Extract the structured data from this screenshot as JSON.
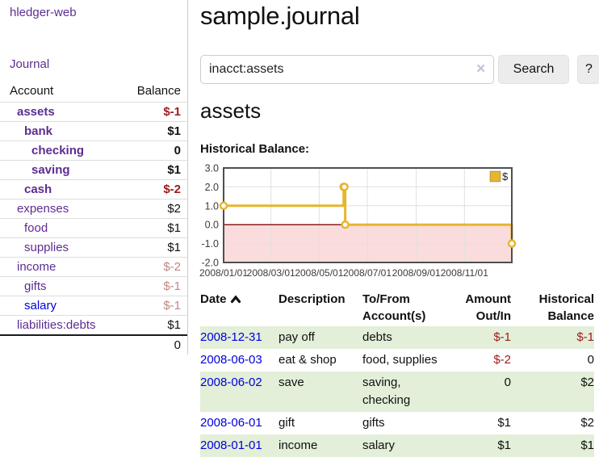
{
  "app": {
    "brand": "hledger-web",
    "nav_journal": "Journal"
  },
  "colors": {
    "accent_purple": "#5c2d91",
    "link_blue": "#0000dd",
    "negative_strong": "#9e1a1a",
    "negative_light": "#c08585",
    "row_green": "#e3efd9",
    "chart_yellow": "#e7b52e",
    "chart_negative_fill": "#fbdcdc",
    "chart_zero_line": "#8b1a1a"
  },
  "sidebar": {
    "header": {
      "account": "Account",
      "balance": "Balance"
    },
    "rows": [
      {
        "label": "assets",
        "balance": "$-1",
        "depth": 0,
        "bold": true,
        "balance_tone": "negative-strong",
        "link_tone": "purple"
      },
      {
        "label": "bank",
        "balance": "$1",
        "depth": 1,
        "bold": true,
        "balance_tone": "normal",
        "link_tone": "purple"
      },
      {
        "label": "checking",
        "balance": "0",
        "depth": 2,
        "bold": true,
        "balance_tone": "normal",
        "link_tone": "purple"
      },
      {
        "label": "saving",
        "balance": "$1",
        "depth": 2,
        "bold": true,
        "balance_tone": "normal",
        "link_tone": "purple"
      },
      {
        "label": "cash",
        "balance": "$-2",
        "depth": 1,
        "bold": true,
        "balance_tone": "negative-strong",
        "link_tone": "purple"
      },
      {
        "label": "expenses",
        "balance": "$2",
        "depth": 0,
        "bold": false,
        "balance_tone": "normal",
        "link_tone": "purple"
      },
      {
        "label": "food",
        "balance": "$1",
        "depth": 1,
        "bold": false,
        "balance_tone": "normal",
        "link_tone": "purple"
      },
      {
        "label": "supplies",
        "balance": "$1",
        "depth": 1,
        "bold": false,
        "balance_tone": "normal",
        "link_tone": "purple"
      },
      {
        "label": "income",
        "balance": "$-2",
        "depth": 0,
        "bold": false,
        "balance_tone": "negative-light",
        "link_tone": "purple"
      },
      {
        "label": "gifts",
        "balance": "$-1",
        "depth": 1,
        "bold": false,
        "balance_tone": "negative-light",
        "link_tone": "purple"
      },
      {
        "label": "salary",
        "balance": "$-1",
        "depth": 1,
        "bold": false,
        "balance_tone": "negative-light",
        "link_tone": "blue"
      },
      {
        "label": "liabilities:debts",
        "balance": "$1",
        "depth": 0,
        "bold": false,
        "balance_tone": "normal",
        "link_tone": "purple"
      }
    ],
    "total": "0"
  },
  "main": {
    "title": "sample.journal",
    "search": {
      "query": "inacct:assets",
      "clear_glyph": "✕",
      "button_label": "Search",
      "help_label": "?"
    },
    "account_heading": "assets",
    "chart_label": "Historical Balance:",
    "register": {
      "columns": [
        {
          "label": "Date",
          "align": "left",
          "sorted_asc": true
        },
        {
          "label": "Description",
          "align": "left"
        },
        {
          "label": "To/From Account(s)",
          "align": "left"
        },
        {
          "label": "Amount Out/In",
          "align": "right"
        },
        {
          "label": "Historical Balance",
          "align": "right"
        }
      ],
      "rows": [
        {
          "date": "2008-12-31",
          "description": "pay off",
          "accounts": "debts",
          "amount": "$-1",
          "amount_tone": "negative",
          "balance": "$-1",
          "balance_tone": "negative"
        },
        {
          "date": "2008-06-03",
          "description": "eat & shop",
          "accounts": "food, supplies",
          "amount": "$-2",
          "amount_tone": "negative",
          "balance": "0",
          "balance_tone": "normal"
        },
        {
          "date": "2008-06-02",
          "description": "save",
          "accounts": "saving, checking",
          "amount": "0",
          "amount_tone": "normal",
          "balance": "$2",
          "balance_tone": "normal"
        },
        {
          "date": "2008-06-01",
          "description": "gift",
          "accounts": "gifts",
          "amount": "$1",
          "amount_tone": "normal",
          "balance": "$2",
          "balance_tone": "normal"
        },
        {
          "date": "2008-01-01",
          "description": "income",
          "accounts": "salary",
          "amount": "$1",
          "amount_tone": "normal",
          "balance": "$1",
          "balance_tone": "normal"
        }
      ]
    }
  },
  "chart_data": {
    "type": "line",
    "step": true,
    "title": "Historical Balance",
    "series": [
      {
        "name": "$",
        "color": "#e7b52e",
        "points": [
          {
            "date": "2008-01-01",
            "day": 0,
            "value": 1
          },
          {
            "date": "2008-06-01",
            "day": 152,
            "value": 2
          },
          {
            "date": "2008-06-02",
            "day": 153,
            "value": 2
          },
          {
            "date": "2008-06-03",
            "day": 154,
            "value": 0
          },
          {
            "date": "2008-12-31",
            "day": 365,
            "value": -1
          }
        ]
      }
    ],
    "x_range_days": [
      0,
      365
    ],
    "x_ticks": [
      {
        "day": 0,
        "label": "2008/01/01"
      },
      {
        "day": 60,
        "label": "2008/03/01"
      },
      {
        "day": 121,
        "label": "2008/05/01"
      },
      {
        "day": 182,
        "label": "2008/07/01"
      },
      {
        "day": 244,
        "label": "2008/09/01"
      },
      {
        "day": 305,
        "label": "2008/11/01"
      }
    ],
    "y_ticks": [
      "3.0",
      "2.0",
      "1.0",
      "0.0",
      "-1.0",
      "-2.0"
    ],
    "ylim": [
      -2,
      3
    ],
    "grid": true,
    "legend": {
      "position": "top-right",
      "label": "$"
    },
    "negative_region": {
      "below": 0,
      "fill": "#fbdcdc",
      "line_color": "#8b1a1a"
    }
  }
}
